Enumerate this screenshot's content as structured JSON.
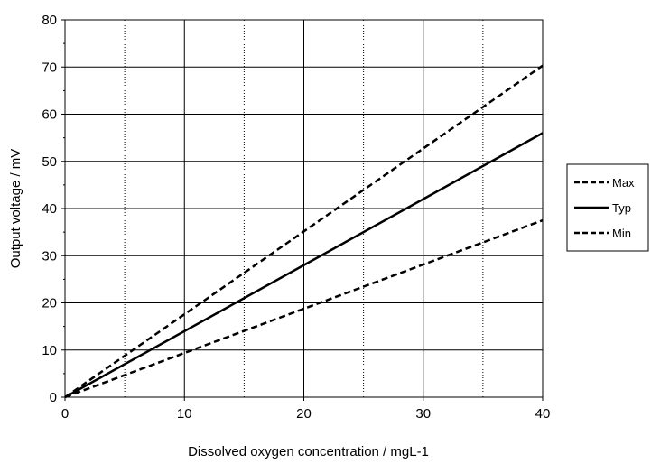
{
  "chart_data": {
    "type": "line",
    "title": "",
    "xlabel": "Dissolved oxygen concentration / mgL-1",
    "ylabel": "Output voltage / mV",
    "xlim": [
      0,
      40
    ],
    "ylim": [
      0,
      80
    ],
    "x_ticks": [
      0,
      10,
      20,
      30,
      40
    ],
    "y_ticks": [
      0,
      10,
      20,
      30,
      40,
      50,
      60,
      70,
      80
    ],
    "x_minor_grid": [
      5,
      15,
      25,
      35
    ],
    "grid": true,
    "legend_position": "right",
    "series": [
      {
        "name": "Max",
        "style": "dashed",
        "color": "#000000",
        "x": [
          0,
          40
        ],
        "y": [
          0,
          70.3
        ]
      },
      {
        "name": "Typ",
        "style": "solid",
        "color": "#000000",
        "x": [
          0,
          40
        ],
        "y": [
          0,
          56
        ]
      },
      {
        "name": "Min",
        "style": "dashed",
        "color": "#000000",
        "x": [
          0,
          40
        ],
        "y": [
          0,
          37.5
        ]
      }
    ]
  }
}
